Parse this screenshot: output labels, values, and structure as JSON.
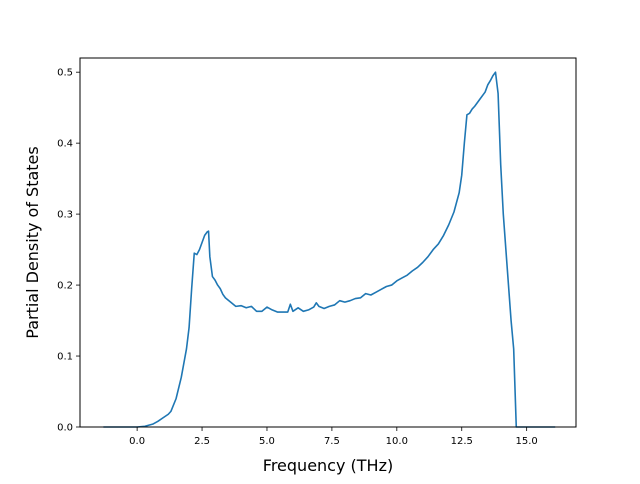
{
  "chart_data": {
    "type": "line",
    "xlabel": "Frequency (THz)",
    "ylabel": "Partial Density of States",
    "xlim": [
      -2.2,
      16.9
    ],
    "ylim": [
      0.0,
      0.52
    ],
    "x_ticks": [
      0.0,
      2.5,
      5.0,
      7.5,
      10.0,
      12.5,
      15.0
    ],
    "y_ticks": [
      0.0,
      0.1,
      0.2,
      0.3,
      0.4,
      0.5
    ],
    "x_tick_labels": [
      "0.0",
      "2.5",
      "5.0",
      "7.5",
      "10.0",
      "12.5",
      "15.0"
    ],
    "y_tick_labels": [
      "0.0",
      "0.1",
      "0.2",
      "0.3",
      "0.4",
      "0.5"
    ],
    "grid": false,
    "colors": {
      "line": "#1f77b4",
      "axes": "#000000",
      "background": "#ffffff"
    },
    "series": [
      {
        "x": [
          -1.3,
          -0.5,
          0.0,
          0.3,
          0.6,
          0.8,
          1.0,
          1.2,
          1.3,
          1.5,
          1.6,
          1.7,
          1.8,
          1.9,
          2.0,
          2.1,
          2.2,
          2.3,
          2.4,
          2.5,
          2.6,
          2.7,
          2.75,
          2.8,
          2.9,
          3.0,
          3.1,
          3.2,
          3.3,
          3.4,
          3.6,
          3.8,
          4.0,
          4.2,
          4.4,
          4.6,
          4.8,
          5.0,
          5.2,
          5.4,
          5.6,
          5.8,
          5.9,
          6.0,
          6.2,
          6.4,
          6.6,
          6.8,
          6.9,
          7.0,
          7.2,
          7.4,
          7.6,
          7.8,
          8.0,
          8.2,
          8.4,
          8.6,
          8.8,
          9.0,
          9.2,
          9.4,
          9.6,
          9.8,
          10.0,
          10.2,
          10.4,
          10.6,
          10.8,
          11.0,
          11.2,
          11.4,
          11.6,
          11.8,
          12.0,
          12.2,
          12.4,
          12.5,
          12.6,
          12.7,
          12.8,
          12.9,
          13.0,
          13.2,
          13.4,
          13.5,
          13.6,
          13.7,
          13.8,
          13.9,
          14.0,
          14.1,
          14.2,
          14.3,
          14.4,
          14.5,
          14.6,
          14.7,
          14.8,
          15.0,
          15.5,
          16.1
        ],
        "y": [
          0.0,
          0.0,
          0.0,
          0.001,
          0.004,
          0.008,
          0.013,
          0.018,
          0.022,
          0.04,
          0.055,
          0.07,
          0.09,
          0.11,
          0.14,
          0.195,
          0.245,
          0.243,
          0.25,
          0.26,
          0.27,
          0.275,
          0.276,
          0.24,
          0.212,
          0.207,
          0.2,
          0.195,
          0.187,
          0.182,
          0.176,
          0.17,
          0.171,
          0.168,
          0.17,
          0.163,
          0.163,
          0.169,
          0.165,
          0.162,
          0.162,
          0.162,
          0.173,
          0.163,
          0.168,
          0.163,
          0.165,
          0.169,
          0.175,
          0.17,
          0.167,
          0.17,
          0.172,
          0.178,
          0.176,
          0.178,
          0.181,
          0.182,
          0.188,
          0.186,
          0.19,
          0.194,
          0.198,
          0.2,
          0.206,
          0.21,
          0.214,
          0.22,
          0.225,
          0.232,
          0.24,
          0.25,
          0.258,
          0.27,
          0.285,
          0.303,
          0.33,
          0.355,
          0.4,
          0.44,
          0.442,
          0.448,
          0.452,
          0.462,
          0.472,
          0.482,
          0.488,
          0.495,
          0.5,
          0.47,
          0.37,
          0.3,
          0.25,
          0.2,
          0.15,
          0.11,
          0.0,
          0.0,
          0.0,
          0.0,
          0.0,
          0.0
        ]
      }
    ]
  }
}
